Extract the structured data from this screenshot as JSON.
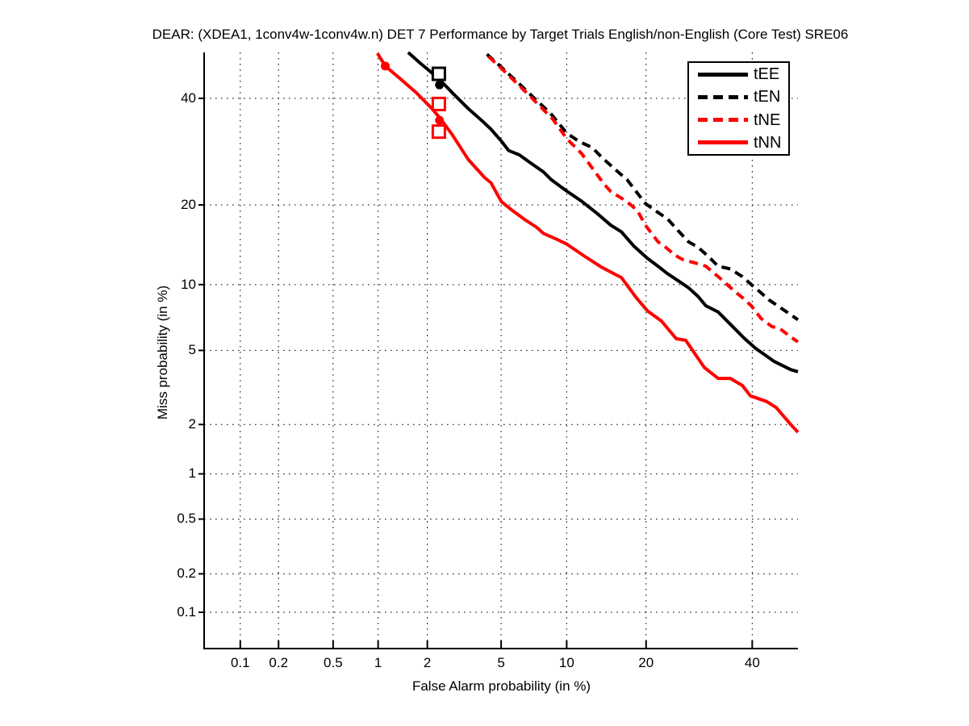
{
  "title": "DEAR: (XDEA1, 1conv4w-1conv4w.n) DET 7 Performance by Target Trials English/non-English (Core Test) SRE06",
  "colors": {
    "black": "#000000",
    "red": "#ff0000",
    "grid": "#000000",
    "background": "#ffffff"
  },
  "chart_data": {
    "type": "line",
    "subtype": "DET curve",
    "scale": "normal-deviate (probit) on both axes",
    "title": "DEAR: (XDEA1, 1conv4w-1conv4w.n) DET 7 Performance by Target Trials English/non-English (Core Test) SRE06",
    "xlabel": "False Alarm probability (in %)",
    "ylabel": "Miss probability (in %)",
    "xlim": [
      0.05,
      50
    ],
    "ylim": [
      0.05,
      50
    ],
    "x_ticks": {
      "values": [
        0.1,
        0.2,
        0.5,
        1,
        2,
        5,
        10,
        20,
        40
      ],
      "labels": [
        "0.1",
        "0.2",
        "0.5",
        "1",
        "2",
        "5",
        "10",
        "20",
        "40"
      ]
    },
    "y_ticks": {
      "values": [
        0.1,
        0.2,
        0.5,
        1,
        2,
        5,
        10,
        20,
        40
      ],
      "labels": [
        "0.1",
        "0.2",
        "0.5",
        "1",
        "2",
        "5",
        "10",
        "20",
        "40"
      ]
    },
    "grid": "dotted",
    "legend_position": "top-right",
    "series": [
      {
        "name": "tEE",
        "color": "#000000",
        "style": "solid",
        "points": [
          [
            1.54,
            50
          ],
          [
            1.81,
            47.7
          ],
          [
            2.32,
            44.3
          ],
          [
            2.77,
            41.2
          ],
          [
            3.39,
            37.8
          ],
          [
            4.0,
            35.3
          ],
          [
            4.44,
            33.6
          ],
          [
            5.02,
            31.2
          ],
          [
            5.45,
            29.4
          ],
          [
            6.12,
            28.6
          ],
          [
            6.91,
            27.1
          ],
          [
            7.91,
            25.5
          ],
          [
            8.59,
            24.1
          ],
          [
            10,
            22.2
          ],
          [
            11.5,
            20.6
          ],
          [
            13.3,
            18.7
          ],
          [
            15,
            17.0
          ],
          [
            16.4,
            16.1
          ],
          [
            18.1,
            14.3
          ],
          [
            20.2,
            12.8
          ],
          [
            21.9,
            11.9
          ],
          [
            23.5,
            11.1
          ],
          [
            25.3,
            10.4
          ],
          [
            27.2,
            9.7
          ],
          [
            29,
            8.9
          ],
          [
            30.5,
            8.1
          ],
          [
            32.9,
            7.6
          ],
          [
            36.2,
            6.4
          ],
          [
            38.4,
            5.7
          ],
          [
            40.8,
            5.1
          ],
          [
            41.9,
            4.9
          ],
          [
            44.8,
            4.4
          ],
          [
            48.4,
            4.0
          ],
          [
            50,
            3.9
          ]
        ]
      },
      {
        "name": "tEN",
        "color": "#000000",
        "style": "dashed",
        "points": [
          [
            4.24,
            49.6
          ],
          [
            5.06,
            46.6
          ],
          [
            6.07,
            43.3
          ],
          [
            7.21,
            40.0
          ],
          [
            8.53,
            36.8
          ],
          [
            10,
            32.8
          ],
          [
            11.3,
            31.1
          ],
          [
            12.7,
            30.0
          ],
          [
            14.0,
            27.9
          ],
          [
            15.5,
            26.0
          ],
          [
            17.2,
            24.1
          ],
          [
            19.9,
            20.2
          ],
          [
            21.5,
            19.1
          ],
          [
            23.5,
            17.9
          ],
          [
            25.3,
            16.3
          ],
          [
            27.2,
            14.8
          ],
          [
            29,
            14.1
          ],
          [
            31,
            13.0
          ],
          [
            32.9,
            11.9
          ],
          [
            35.4,
            11.6
          ],
          [
            37.9,
            10.8
          ],
          [
            39.8,
            10.0
          ],
          [
            41.7,
            9.3
          ],
          [
            43.6,
            8.6
          ],
          [
            45.9,
            8.0
          ],
          [
            47.5,
            7.6
          ],
          [
            50,
            7.0
          ]
        ]
      },
      {
        "name": "tNE",
        "color": "#ff0000",
        "style": "dashed",
        "points": [
          [
            4.32,
            49.1
          ],
          [
            5.21,
            45.8
          ],
          [
            6.23,
            42.4
          ],
          [
            7.4,
            39.0
          ],
          [
            8.73,
            35.6
          ],
          [
            10,
            31.7
          ],
          [
            11.5,
            28.9
          ],
          [
            12.7,
            26.2
          ],
          [
            14.1,
            23.4
          ],
          [
            15.0,
            22.1
          ],
          [
            17.2,
            20.5
          ],
          [
            18.7,
            19.1
          ],
          [
            19.9,
            17.0
          ],
          [
            21.9,
            14.8
          ],
          [
            23.2,
            14.1
          ],
          [
            24.9,
            13.1
          ],
          [
            26.3,
            12.6
          ],
          [
            28.2,
            12.3
          ],
          [
            30.5,
            11.9
          ],
          [
            32.9,
            10.8
          ],
          [
            34.5,
            10.1
          ],
          [
            36.2,
            9.4
          ],
          [
            37.9,
            8.8
          ],
          [
            39.8,
            8.1
          ],
          [
            41.9,
            7.1
          ],
          [
            44.3,
            6.5
          ],
          [
            45.9,
            6.4
          ],
          [
            48.0,
            5.9
          ],
          [
            50,
            5.5
          ]
        ]
      },
      {
        "name": "tNN",
        "color": "#ff0000",
        "style": "solid",
        "points": [
          [
            0.99,
            49.8
          ],
          [
            1.11,
            47.0
          ],
          [
            1.37,
            44.3
          ],
          [
            1.72,
            41.2
          ],
          [
            2.13,
            37.8
          ],
          [
            2.37,
            35.8
          ],
          [
            2.77,
            32.5
          ],
          [
            3.39,
            27.7
          ],
          [
            4.12,
            24.5
          ],
          [
            4.44,
            23.6
          ],
          [
            5.02,
            20.5
          ],
          [
            5.7,
            19.1
          ],
          [
            6.51,
            17.8
          ],
          [
            7.4,
            16.7
          ],
          [
            7.91,
            15.9
          ],
          [
            9.1,
            15.1
          ],
          [
            10,
            14.5
          ],
          [
            11.9,
            13.0
          ],
          [
            13.8,
            11.8
          ],
          [
            16.4,
            10.7
          ],
          [
            18.5,
            8.8
          ],
          [
            20.2,
            7.7
          ],
          [
            22.5,
            6.9
          ],
          [
            25,
            5.7
          ],
          [
            26.7,
            5.6
          ],
          [
            30.2,
            4.1
          ],
          [
            32.9,
            3.6
          ],
          [
            35.4,
            3.6
          ],
          [
            37.9,
            3.3
          ],
          [
            39.6,
            2.9
          ],
          [
            43.1,
            2.7
          ],
          [
            45.2,
            2.5
          ],
          [
            48.4,
            2.0
          ],
          [
            50,
            1.8
          ]
        ]
      }
    ],
    "markers": [
      {
        "series": "tNN",
        "shape": "circle-filled",
        "color": "#ff0000",
        "fa": 1.11,
        "miss": 47.0
      },
      {
        "series": "tEE",
        "shape": "square-open",
        "color": "#000000",
        "fa": 2.33,
        "miss": 45.3
      },
      {
        "series": "tEE",
        "shape": "circle-filled",
        "color": "#000000",
        "fa": 2.35,
        "miss": 42.9
      },
      {
        "series": "tNE",
        "shape": "square-open",
        "color": "#ff0000",
        "fa": 2.33,
        "miss": 38.8
      },
      {
        "series": "tNN",
        "shape": "circle-filled",
        "color": "#ff0000",
        "fa": 2.35,
        "miss": 35.4
      },
      {
        "series": "tNN",
        "shape": "square-open",
        "color": "#ff0000",
        "fa": 2.33,
        "miss": 33.1
      }
    ]
  }
}
